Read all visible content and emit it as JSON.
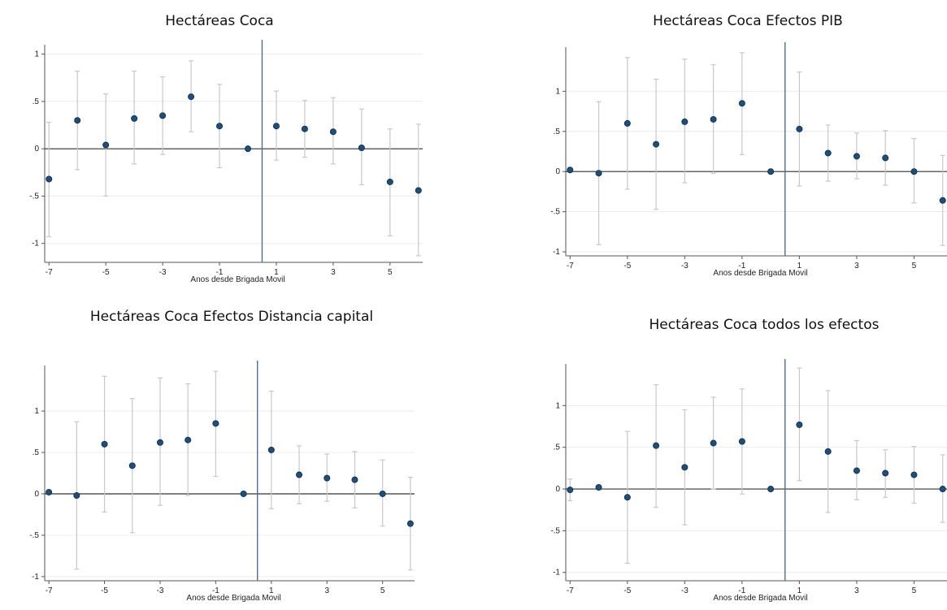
{
  "chart_data": [
    {
      "type": "scatter",
      "title": "Hectáreas Coca",
      "xlabel": "Anos desde Brigada Movil",
      "ylabel": "",
      "x": [
        -7,
        -6,
        -5,
        -4,
        -3,
        -2,
        -1,
        0,
        1,
        2,
        3,
        4,
        5,
        6
      ],
      "y": [
        -0.32,
        0.3,
        0.04,
        0.32,
        0.35,
        0.55,
        0.24,
        0.0,
        0.24,
        0.21,
        0.18,
        0.01,
        -0.35,
        -0.44
      ],
      "ci_low": [
        -0.93,
        -0.22,
        -0.5,
        -0.16,
        -0.06,
        0.18,
        -0.2,
        0.0,
        -0.12,
        -0.09,
        -0.16,
        -0.38,
        -0.92,
        -1.13
      ],
      "ci_high": [
        0.28,
        0.82,
        0.58,
        0.82,
        0.76,
        0.93,
        0.68,
        0.0,
        0.61,
        0.51,
        0.54,
        0.42,
        0.21,
        0.26
      ],
      "xlim": [
        -7.15,
        6.15
      ],
      "ylim": [
        -1.2,
        1.1
      ],
      "yticks": [
        -1,
        -0.5,
        0,
        0.5,
        1
      ],
      "yticklabels": [
        "-1",
        "-.5",
        "0",
        ".5",
        "1"
      ],
      "xticks": [
        -7,
        -5,
        -3,
        -1,
        1,
        3,
        5
      ],
      "xticklabels": [
        "-7",
        "-5",
        "-3",
        "-1",
        "1",
        "3",
        "5"
      ],
      "vline_x": 0.5,
      "hline_y": 0
    },
    {
      "type": "scatter",
      "title": "Hectáreas Coca Efectos PIB",
      "xlabel": "Anos desde Brigada Movil",
      "ylabel": "",
      "x": [
        -7,
        -6,
        -5,
        -4,
        -3,
        -2,
        -1,
        0,
        1,
        2,
        3,
        4,
        5,
        6
      ],
      "y": [
        0.02,
        -0.02,
        0.6,
        0.34,
        0.62,
        0.65,
        0.85,
        0.0,
        0.53,
        0.23,
        0.19,
        0.17,
        0.0,
        -0.36
      ],
      "ci_low": [
        0.02,
        -0.91,
        -0.22,
        -0.47,
        -0.14,
        -0.02,
        0.21,
        0.0,
        -0.18,
        -0.12,
        -0.09,
        -0.17,
        -0.39,
        -0.92
      ],
      "ci_high": [
        0.02,
        0.87,
        1.42,
        1.15,
        1.4,
        1.33,
        1.48,
        0.0,
        1.24,
        0.58,
        0.48,
        0.51,
        0.41,
        0.2
      ],
      "xlim": [
        -7.15,
        6.15
      ],
      "ylim": [
        -1.05,
        1.55
      ],
      "yticks": [
        -1,
        -0.5,
        0,
        0.5,
        1
      ],
      "yticklabels": [
        "-1",
        "-.5",
        "0",
        ".5",
        "1"
      ],
      "xticks": [
        -7,
        -5,
        -3,
        -1,
        1,
        3,
        5
      ],
      "xticklabels": [
        "-7",
        "-5",
        "-3",
        "-1",
        "1",
        "3",
        "5"
      ],
      "vline_x": 0.5,
      "hline_y": 0
    },
    {
      "type": "scatter",
      "title": "Hectáreas Coca Efectos Distancia capital",
      "xlabel": "Anos desde Brigada Movil",
      "ylabel": "",
      "x": [
        -7,
        -6,
        -5,
        -4,
        -3,
        -2,
        -1,
        0,
        1,
        2,
        3,
        4,
        5,
        6
      ],
      "y": [
        0.02,
        -0.02,
        0.6,
        0.34,
        0.62,
        0.65,
        0.85,
        0.0,
        0.53,
        0.23,
        0.19,
        0.17,
        0.0,
        -0.36
      ],
      "ci_low": [
        0.02,
        -0.91,
        -0.22,
        -0.47,
        -0.14,
        -0.02,
        0.21,
        0.0,
        -0.18,
        -0.12,
        -0.09,
        -0.17,
        -0.39,
        -0.92
      ],
      "ci_high": [
        0.02,
        0.87,
        1.42,
        1.15,
        1.4,
        1.33,
        1.48,
        0.0,
        1.24,
        0.58,
        0.48,
        0.51,
        0.41,
        0.2
      ],
      "xlim": [
        -7.15,
        6.15
      ],
      "ylim": [
        -1.05,
        1.55
      ],
      "yticks": [
        -1,
        -0.5,
        0,
        0.5,
        1
      ],
      "yticklabels": [
        "-1",
        "-.5",
        "0",
        ".5",
        "1"
      ],
      "xticks": [
        -7,
        -5,
        -3,
        -1,
        1,
        3,
        5
      ],
      "xticklabels": [
        "-7",
        "-5",
        "-3",
        "-1",
        "1",
        "3",
        "5"
      ],
      "vline_x": 0.5,
      "hline_y": 0
    },
    {
      "type": "scatter",
      "title": "Hectáreas Coca todos los efectos",
      "xlabel": "Anos desde Brigada Movil",
      "ylabel": "",
      "x": [
        -7,
        -6,
        -5,
        -4,
        -3,
        -2,
        -1,
        0,
        1,
        2,
        3,
        4,
        5,
        6
      ],
      "y": [
        -0.01,
        0.02,
        -0.1,
        0.52,
        0.26,
        0.55,
        0.57,
        0.0,
        0.77,
        0.45,
        0.22,
        0.19,
        0.17,
        0.0
      ],
      "ci_low": [
        -0.14,
        0.02,
        -0.89,
        -0.22,
        -0.43,
        0.0,
        -0.06,
        0.0,
        0.1,
        -0.28,
        -0.13,
        -0.1,
        -0.17,
        -0.4
      ],
      "ci_high": [
        0.12,
        0.02,
        0.69,
        1.25,
        0.95,
        1.1,
        1.2,
        0.0,
        1.45,
        1.18,
        0.58,
        0.47,
        0.51,
        0.41
      ],
      "xlim": [
        -7.15,
        6.15
      ],
      "ylim": [
        -1.1,
        1.5
      ],
      "yticks": [
        -1,
        -0.5,
        0,
        0.5,
        1
      ],
      "yticklabels": [
        "-1",
        "-.5",
        "0",
        ".5",
        "1"
      ],
      "xticks": [
        -7,
        -5,
        -3,
        -1,
        1,
        3,
        5
      ],
      "xticklabels": [
        "-7",
        "-5",
        "-3",
        "-1",
        "1",
        "3",
        "5"
      ],
      "vline_x": 0.5,
      "hline_y": 0
    }
  ],
  "colors": {
    "marker": "#1f4e79",
    "marker_edge": "#0d2a45",
    "ci": "#c8c8c8",
    "vline": "#4a6f96",
    "hline": "#333333",
    "grid": "#ececec",
    "axis": "#555555"
  }
}
